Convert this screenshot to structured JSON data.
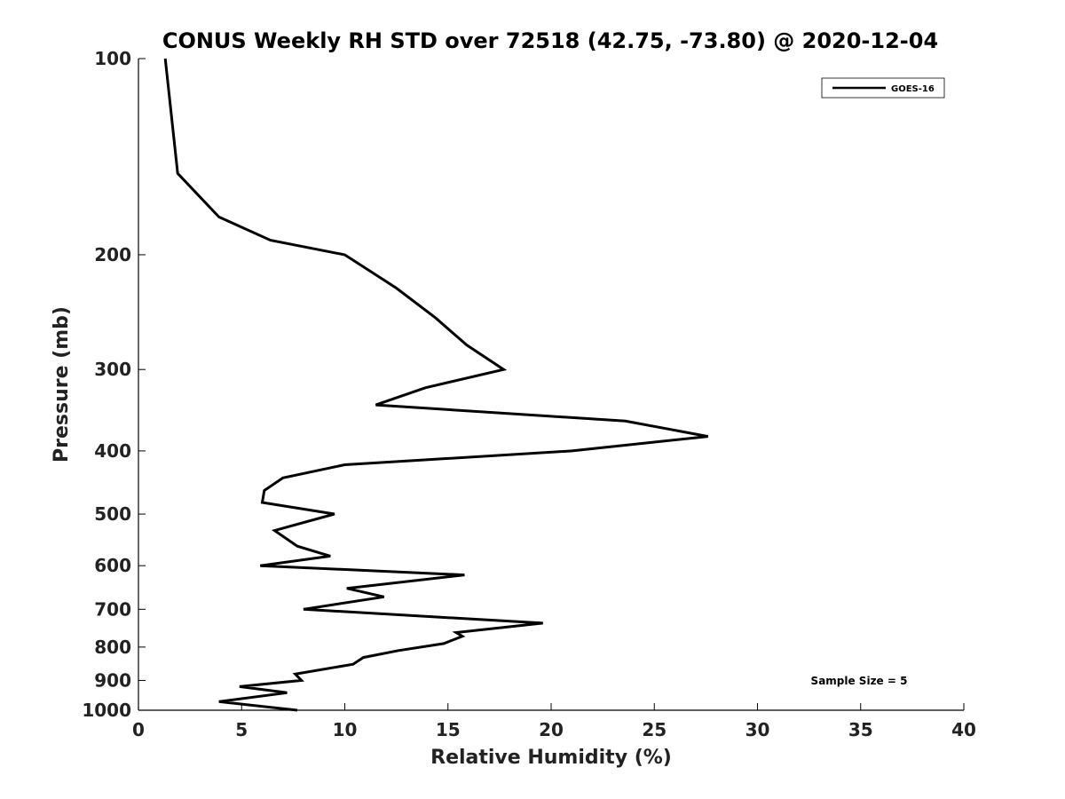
{
  "chart_data": {
    "type": "line",
    "title": "CONUS Weekly RH STD over 72518 (42.75, -73.80) @ 2020-12-04",
    "xlabel": "Relative Humidity (%)",
    "ylabel": "Pressure (mb)",
    "xlim": [
      0,
      40
    ],
    "ylim": [
      100,
      1000
    ],
    "yscale": "log",
    "reverse_y": true,
    "xticks": [
      0,
      5,
      10,
      15,
      20,
      25,
      30,
      35,
      40
    ],
    "yticks": [
      100,
      200,
      300,
      400,
      500,
      600,
      700,
      800,
      900,
      1000
    ],
    "grid": false,
    "legend": {
      "position": "top-right",
      "entries": [
        "GOES-16"
      ]
    },
    "annotation": "Sample Size = 5",
    "series": [
      {
        "name": "GOES-16",
        "color": "#000000",
        "points": [
          {
            "x": 1.3,
            "y": 100
          },
          {
            "x": 1.9,
            "y": 150
          },
          {
            "x": 3.9,
            "y": 175
          },
          {
            "x": 6.4,
            "y": 190
          },
          {
            "x": 10.0,
            "y": 200
          },
          {
            "x": 12.5,
            "y": 225
          },
          {
            "x": 14.4,
            "y": 250
          },
          {
            "x": 15.9,
            "y": 275
          },
          {
            "x": 17.7,
            "y": 300
          },
          {
            "x": 13.9,
            "y": 320
          },
          {
            "x": 11.5,
            "y": 340
          },
          {
            "x": 23.6,
            "y": 360
          },
          {
            "x": 27.6,
            "y": 380
          },
          {
            "x": 21.0,
            "y": 400
          },
          {
            "x": 10.0,
            "y": 420
          },
          {
            "x": 7.0,
            "y": 440
          },
          {
            "x": 6.1,
            "y": 460
          },
          {
            "x": 6.0,
            "y": 480
          },
          {
            "x": 9.5,
            "y": 500
          },
          {
            "x": 6.6,
            "y": 530
          },
          {
            "x": 7.7,
            "y": 560
          },
          {
            "x": 9.3,
            "y": 580
          },
          {
            "x": 5.9,
            "y": 600
          },
          {
            "x": 15.8,
            "y": 620
          },
          {
            "x": 10.1,
            "y": 650
          },
          {
            "x": 11.9,
            "y": 670
          },
          {
            "x": 8.0,
            "y": 700
          },
          {
            "x": 19.6,
            "y": 735
          },
          {
            "x": 15.4,
            "y": 760
          },
          {
            "x": 15.7,
            "y": 770
          },
          {
            "x": 14.8,
            "y": 790
          },
          {
            "x": 12.6,
            "y": 810
          },
          {
            "x": 10.9,
            "y": 830
          },
          {
            "x": 10.4,
            "y": 850
          },
          {
            "x": 7.6,
            "y": 880
          },
          {
            "x": 7.9,
            "y": 900
          },
          {
            "x": 4.9,
            "y": 920
          },
          {
            "x": 7.2,
            "y": 940
          },
          {
            "x": 3.9,
            "y": 970
          },
          {
            "x": 7.7,
            "y": 1000
          }
        ]
      }
    ]
  }
}
